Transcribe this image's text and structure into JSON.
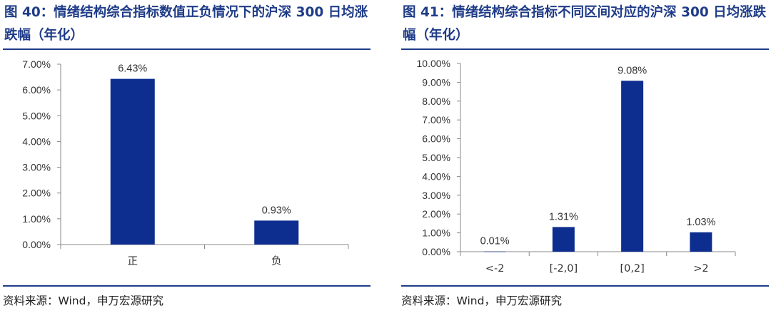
{
  "figures": [
    {
      "title": "图 40：情绪结构综合指标数值正负情况下的沪深 300 日均涨跌幅（年化）",
      "source": "资料来源：Wind，申万宏源研究"
    },
    {
      "title": "图 41：情绪结构综合指标不同区间对应的沪深 300 日均涨跌幅（年化）",
      "source": "资料来源：Wind，申万宏源研究"
    }
  ],
  "chart_data": [
    {
      "type": "bar",
      "title": "图 40：情绪结构综合指标数值正负情况下的沪深 300 日均涨跌幅（年化）",
      "categories": [
        "正",
        "负"
      ],
      "values": [
        6.43,
        0.93
      ],
      "data_labels": [
        "6.43%",
        "0.93%"
      ],
      "yticks": [
        "0.00%",
        "1.00%",
        "2.00%",
        "3.00%",
        "4.00%",
        "5.00%",
        "6.00%",
        "7.00%"
      ],
      "ylim": [
        0,
        7
      ],
      "xlabel": "",
      "ylabel": "",
      "grid": false,
      "legend": "none",
      "bar_color": "#0d2d8f"
    },
    {
      "type": "bar",
      "title": "图 41：情绪结构综合指标不同区间对应的沪深 300 日均涨跌幅（年化）",
      "categories": [
        "<-2",
        "[-2,0]",
        "[0,2]",
        ">2"
      ],
      "values": [
        0.01,
        1.31,
        9.08,
        1.03
      ],
      "data_labels": [
        "0.01%",
        "1.31%",
        "9.08%",
        "1.03%"
      ],
      "yticks": [
        "0.00%",
        "1.00%",
        "2.00%",
        "3.00%",
        "4.00%",
        "5.00%",
        "6.00%",
        "7.00%",
        "8.00%",
        "9.00%",
        "10.00%"
      ],
      "ylim": [
        0,
        10
      ],
      "xlabel": "",
      "ylabel": "",
      "grid": false,
      "legend": "none",
      "bar_color": "#0d2d8f"
    }
  ]
}
